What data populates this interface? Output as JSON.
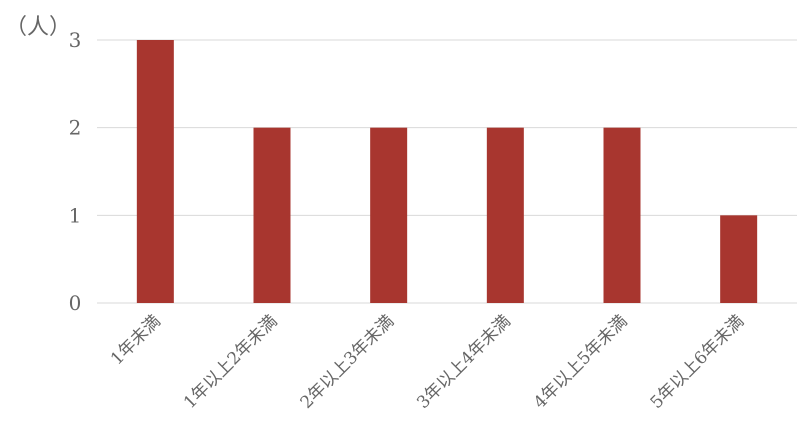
{
  "chart_data": {
    "type": "bar",
    "categories": [
      "1年未満",
      "1年以上2年未満",
      "2年以上3年未満",
      "3年以上4年未満",
      "4年以上5年未満",
      "5年以上6年未満"
    ],
    "values": [
      3,
      2,
      2,
      2,
      2,
      1
    ],
    "ylabel": "（人）",
    "ylim": [
      0,
      3
    ],
    "yticks": [
      0,
      1,
      2,
      3
    ],
    "grid": true,
    "bar_color": "#a8362f",
    "grid_color": "#d9d9d9"
  }
}
